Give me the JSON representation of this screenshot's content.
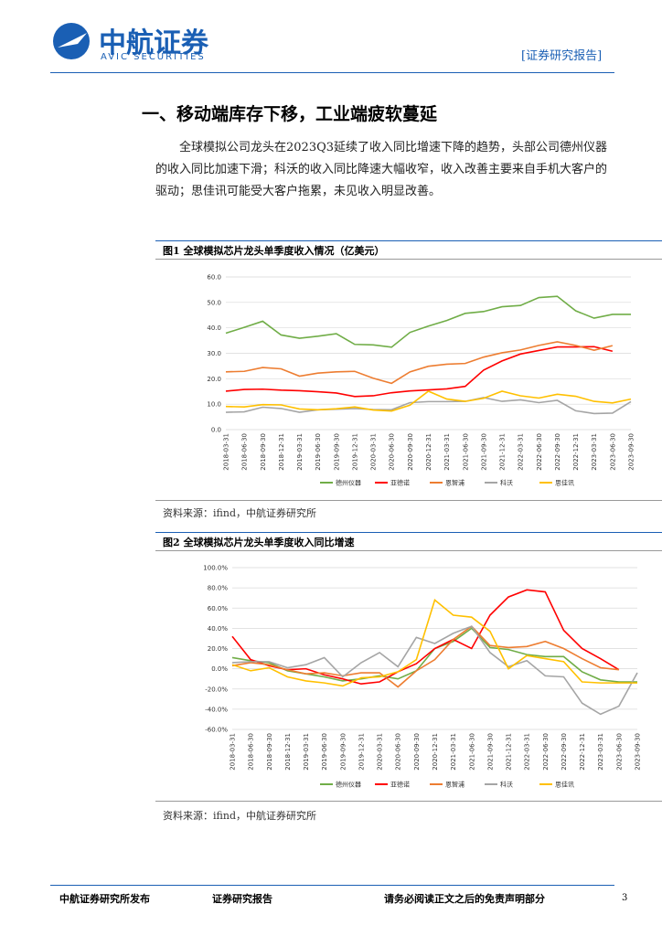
{
  "header": {
    "logo": "中航证券",
    "logo_en": "AVIC SECURITIES",
    "tag": "[证券研究报告]"
  },
  "section_title": "一、移动端库存下移，工业端疲软蔓延",
  "paragraph": "全球模拟公司龙头在2023Q3延续了收入同比增速下降的趋势，头部公司德州仪器的收入同比加速下滑；科沃的收入同比降速大幅收窄，收入改善主要来自手机大客户的驱动；思佳讯可能受大客户拖累，未见收入明显改善。",
  "figures": [
    {
      "caption": "图1  全球模拟芯片龙头单季度收入情况（亿美元）",
      "source": "资料来源：ifind，中航证券研究所"
    },
    {
      "caption": "图2  全球模拟芯片龙头单季度收入同比增速",
      "source": "资料来源：ifind，中航证券研究所"
    }
  ],
  "chart_data": [
    {
      "type": "line",
      "grid": true,
      "categories": [
        "2018-03-31",
        "2018-06-30",
        "2018-09-30",
        "2018-12-31",
        "2019-03-31",
        "2019-06-30",
        "2019-09-30",
        "2019-12-31",
        "2020-03-31",
        "2020-06-30",
        "2020-09-30",
        "2020-12-31",
        "2021-03-31",
        "2021-06-30",
        "2021-09-30",
        "2021-12-31",
        "2022-03-31",
        "2022-06-30",
        "2022-09-30",
        "2022-12-31",
        "2023-03-31",
        "2023-06-30",
        "2023-09-30"
      ],
      "ylim": [
        0,
        60
      ],
      "yticks": [
        {
          "value": 0,
          "label": "0.0"
        },
        {
          "value": 10,
          "label": "10.0"
        },
        {
          "value": 20,
          "label": "20.0"
        },
        {
          "value": 30,
          "label": "30.0"
        },
        {
          "value": 40,
          "label": "40.0"
        },
        {
          "value": 50,
          "label": "50.0"
        },
        {
          "value": 60,
          "label": "60.0"
        }
      ],
      "series": [
        {
          "name": "德州仪器",
          "color": "#70ad47",
          "values": [
            37.9,
            40.2,
            42.6,
            37.2,
            35.9,
            36.7,
            37.7,
            33.5,
            33.3,
            32.4,
            38.2,
            40.7,
            42.9,
            45.7,
            46.4,
            48.3,
            48.8,
            51.9,
            52.4,
            46.7,
            43.8,
            45.3,
            45.3
          ]
        },
        {
          "name": "亚德诺",
          "color": "#ff0000",
          "values": [
            15.1,
            15.8,
            15.9,
            15.5,
            15.3,
            14.9,
            14.4,
            13.0,
            13.3,
            14.5,
            15.2,
            15.6,
            16.0,
            17.0,
            23.4,
            27.0,
            29.7,
            31.1,
            32.5,
            32.5,
            32.6,
            30.8,
            null
          ]
        },
        {
          "name": "恩智浦",
          "color": "#ed7d31",
          "values": [
            22.7,
            22.9,
            24.4,
            23.9,
            21.0,
            22.2,
            22.7,
            22.9,
            20.2,
            18.2,
            22.7,
            24.9,
            25.7,
            26.0,
            28.5,
            30.2,
            31.3,
            33.1,
            34.5,
            33.1,
            31.2,
            33.0,
            null
          ]
        },
        {
          "name": "科沃",
          "color": "#a5a5a5",
          "values": [
            6.8,
            7.0,
            8.8,
            8.3,
            6.8,
            7.8,
            8.0,
            8.3,
            7.9,
            7.8,
            10.6,
            11.0,
            11.0,
            11.1,
            12.6,
            11.1,
            11.7,
            10.6,
            11.5,
            7.4,
            6.3,
            6.5,
            11.0
          ]
        },
        {
          "name": "思佳讯",
          "color": "#ffc000",
          "values": [
            9.1,
            8.9,
            9.8,
            9.7,
            8.1,
            7.8,
            8.2,
            8.9,
            7.7,
            7.3,
            9.6,
            15.1,
            12.0,
            11.1,
            12.3,
            15.1,
            13.3,
            12.4,
            13.9,
            13.1,
            11.1,
            10.5,
            12.0
          ]
        }
      ]
    },
    {
      "type": "line",
      "grid": true,
      "categories": [
        "2018-03-31",
        "2018-06-30",
        "2018-09-30",
        "2018-12-31",
        "2019-03-31",
        "2019-06-30",
        "2019-09-30",
        "2019-12-31",
        "2020-03-31",
        "2020-06-30",
        "2020-09-30",
        "2020-12-31",
        "2021-03-31",
        "2021-06-30",
        "2021-09-30",
        "2021-12-31",
        "2022-03-31",
        "2022-06-30",
        "2022-09-30",
        "2022-12-31",
        "2023-03-31",
        "2023-06-30",
        "2023-09-30"
      ],
      "ylim": [
        -60,
        100
      ],
      "yticks": [
        {
          "value": -60,
          "label": "-60.0%"
        },
        {
          "value": -40,
          "label": "-40.0%"
        },
        {
          "value": -20,
          "label": "-20.0%"
        },
        {
          "value": 0,
          "label": "0.0%"
        },
        {
          "value": 20,
          "label": "20.0%"
        },
        {
          "value": 40,
          "label": "40.0%"
        },
        {
          "value": 60,
          "label": "60.0%"
        },
        {
          "value": 80,
          "label": "80.0%"
        },
        {
          "value": 100,
          "label": "100.0%"
        }
      ],
      "series": [
        {
          "name": "德州仪器",
          "color": "#70ad47",
          "values": [
            11,
            8,
            6,
            -2,
            -5,
            -8,
            -12,
            -10,
            -7,
            -10,
            -2,
            20,
            27,
            40,
            21,
            19,
            14,
            12,
            12,
            -3,
            -11,
            -13,
            -13
          ]
        },
        {
          "name": "亚德诺",
          "color": "#ff0000",
          "values": [
            32,
            9,
            3,
            -1,
            0,
            -6,
            -10,
            -15,
            -13,
            -3,
            5,
            20,
            29,
            20,
            53,
            71,
            78,
            76,
            38,
            20,
            10,
            -1,
            null
          ]
        },
        {
          "name": "恩智浦",
          "color": "#ed7d31",
          "values": [
            3,
            6,
            4,
            -1,
            -5,
            -4,
            -7,
            -4,
            -4,
            -18,
            -2,
            9,
            29,
            42,
            23,
            21,
            22,
            27,
            20,
            10,
            1,
            -1,
            null
          ]
        },
        {
          "name": "科沃",
          "color": "#a5a5a5",
          "values": [
            6,
            7,
            7,
            1,
            4,
            11,
            -8,
            6,
            16,
            2,
            31,
            25,
            35,
            42,
            16,
            2,
            8,
            -7,
            -8,
            -34,
            -45,
            -37,
            -4
          ]
        },
        {
          "name": "思佳讯",
          "color": "#ffc000",
          "values": [
            4,
            -2,
            1,
            -8,
            -12,
            -14,
            -17,
            -9,
            -8,
            -3,
            9,
            68,
            53,
            51,
            37,
            0,
            13,
            10,
            7,
            -13,
            -14,
            -14,
            -14
          ]
        }
      ]
    }
  ],
  "footer": {
    "left": "中航证券研究所发布",
    "middle": "证券研究报告",
    "right": "请务必阅读正文之后的免责声明部分",
    "page": "3"
  }
}
